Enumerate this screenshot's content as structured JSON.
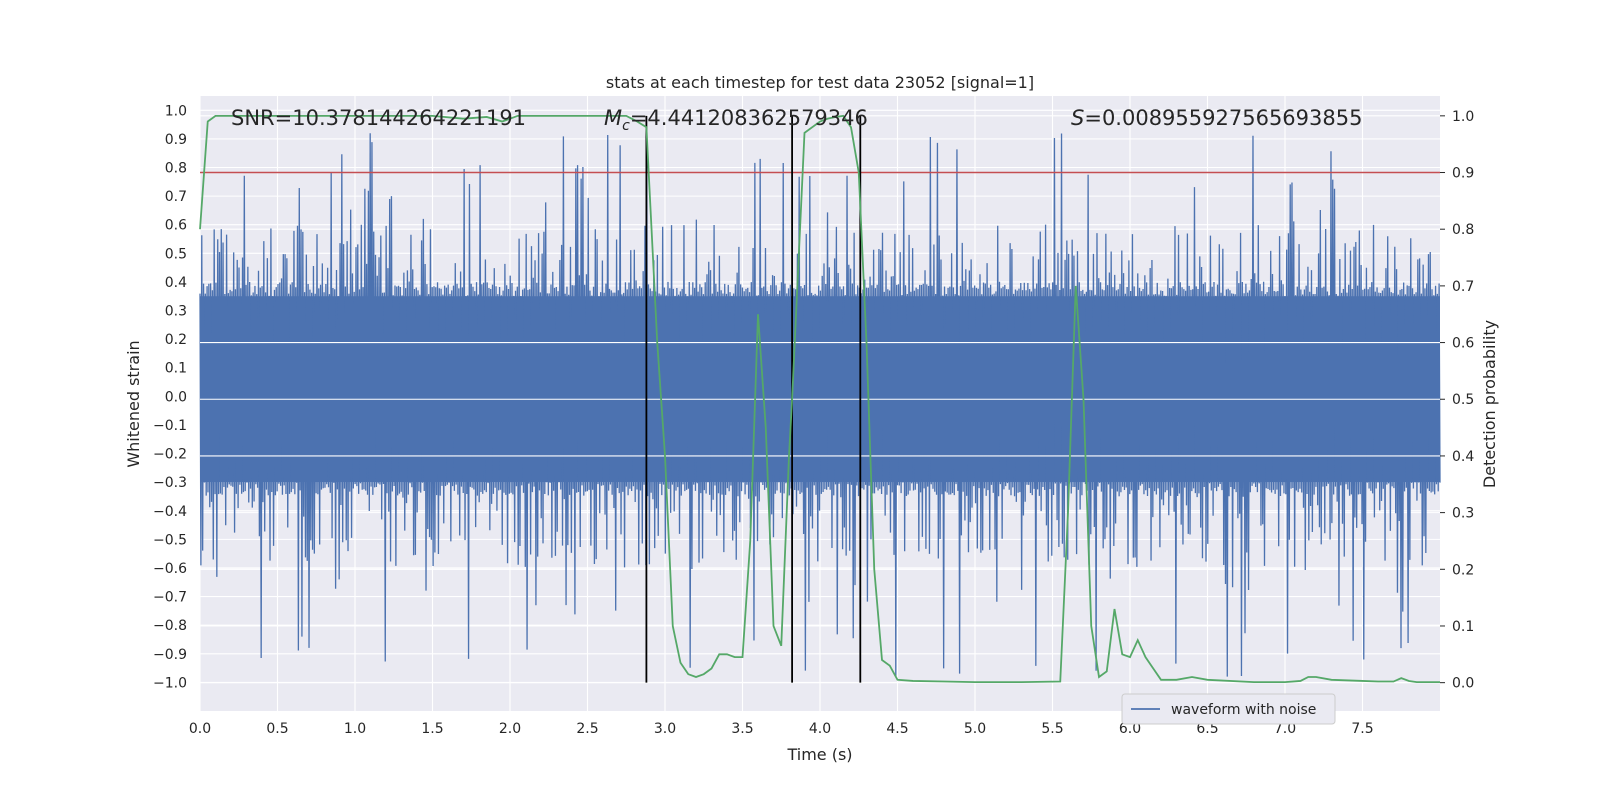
{
  "chart_data": {
    "type": "line",
    "title": "stats at each timestep for test data 23052 [signal=1]",
    "xlabel": "Time (s)",
    "ylabel": "Whitened strain",
    "ylabel_right": "Detection probability",
    "xlim": [
      0.0,
      8.0
    ],
    "ylim": [
      -1.1,
      1.05
    ],
    "ylim_right": [
      -0.05,
      1.035
    ],
    "xticks": [
      "0.0",
      "0.5",
      "1.0",
      "1.5",
      "2.0",
      "2.5",
      "3.0",
      "3.5",
      "4.0",
      "4.5",
      "5.0",
      "5.5",
      "6.0",
      "6.5",
      "7.0",
      "7.5"
    ],
    "yticks": [
      "1.0",
      "0.9",
      "0.8",
      "0.7",
      "0.6",
      "0.5",
      "0.4",
      "0.3",
      "0.2",
      "0.1",
      "0.0",
      "−0.1",
      "−0.2",
      "−0.3",
      "−0.4",
      "−0.5",
      "−0.6",
      "−0.7",
      "−0.8",
      "−0.9",
      "−1.0"
    ],
    "yticks_right": [
      "1.0",
      "0.9",
      "0.8",
      "0.7",
      "0.6",
      "0.5",
      "0.4",
      "0.3",
      "0.2",
      "0.1",
      "0.0"
    ],
    "grid": true,
    "legend": {
      "entries": [
        "waveform with noise"
      ],
      "location": "lower-right"
    },
    "annotations": {
      "snr": "SNR=10.378144264221191",
      "mc_symbol": "M",
      "mc_sub": "c",
      "mc_value": "=4.441208362579346",
      "s_symbol": "S",
      "s_value": "=0.008955927565693855"
    },
    "threshold_right": 0.9,
    "vertical_lines_x": [
      2.88,
      3.82,
      4.26
    ],
    "waveform": {
      "name": "waveform with noise",
      "x_start": 0.0,
      "x_end": 8.0,
      "samples": 1400,
      "band_upper": 0.35,
      "band_lower": -0.3,
      "typical_max": 0.6,
      "typical_min": -0.6,
      "peak_max": 0.92,
      "peak_min": -0.98
    },
    "series": [
      {
        "name": "Detection probability",
        "axis": "right",
        "x": [
          0.0,
          0.05,
          0.1,
          0.2,
          0.3,
          0.5,
          0.7,
          1.0,
          1.3,
          1.5,
          1.7,
          1.85,
          1.95,
          2.05,
          2.2,
          2.4,
          2.6,
          2.75,
          2.82,
          2.88,
          2.95,
          3.0,
          3.05,
          3.1,
          3.15,
          3.2,
          3.25,
          3.3,
          3.35,
          3.4,
          3.45,
          3.5,
          3.55,
          3.6,
          3.65,
          3.7,
          3.75,
          3.8,
          3.82,
          3.9,
          4.0,
          4.05,
          4.1,
          4.15,
          4.2,
          4.25,
          4.3,
          4.35,
          4.4,
          4.45,
          4.5,
          4.6,
          4.8,
          5.0,
          5.3,
          5.55,
          5.6,
          5.65,
          5.7,
          5.75,
          5.8,
          5.85,
          5.9,
          5.95,
          6.0,
          6.05,
          6.1,
          6.15,
          6.2,
          6.25,
          6.3,
          6.4,
          6.5,
          6.8,
          7.0,
          7.1,
          7.15,
          7.2,
          7.3,
          7.5,
          7.6,
          7.7,
          7.75,
          7.8,
          7.85,
          8.0
        ],
        "y": [
          0.8,
          0.99,
          1.0,
          1.0,
          1.0,
          1.0,
          1.0,
          1.0,
          1.0,
          1.0,
          0.995,
          0.998,
          0.99,
          1.0,
          1.0,
          1.0,
          1.0,
          1.0,
          0.99,
          0.98,
          0.6,
          0.4,
          0.1,
          0.035,
          0.015,
          0.01,
          0.015,
          0.025,
          0.05,
          0.05,
          0.045,
          0.045,
          0.25,
          0.65,
          0.45,
          0.1,
          0.065,
          0.4,
          0.5,
          0.97,
          0.99,
          0.995,
          0.998,
          1.0,
          0.98,
          0.9,
          0.6,
          0.2,
          0.04,
          0.03,
          0.005,
          0.003,
          0.002,
          0.001,
          0.001,
          0.002,
          0.3,
          0.7,
          0.5,
          0.1,
          0.01,
          0.02,
          0.13,
          0.05,
          0.045,
          0.075,
          0.045,
          0.025,
          0.005,
          0.005,
          0.005,
          0.01,
          0.005,
          0.001,
          0.001,
          0.003,
          0.01,
          0.01,
          0.005,
          0.003,
          0.002,
          0.002,
          0.008,
          0.003,
          0.001,
          0.001
        ]
      }
    ]
  },
  "colors": {
    "background": "#eaeaf2",
    "grid": "#ffffff",
    "waveform": "#4c72b0",
    "probability": "#55a868",
    "threshold": "#c44e52",
    "vline": "#000000"
  }
}
